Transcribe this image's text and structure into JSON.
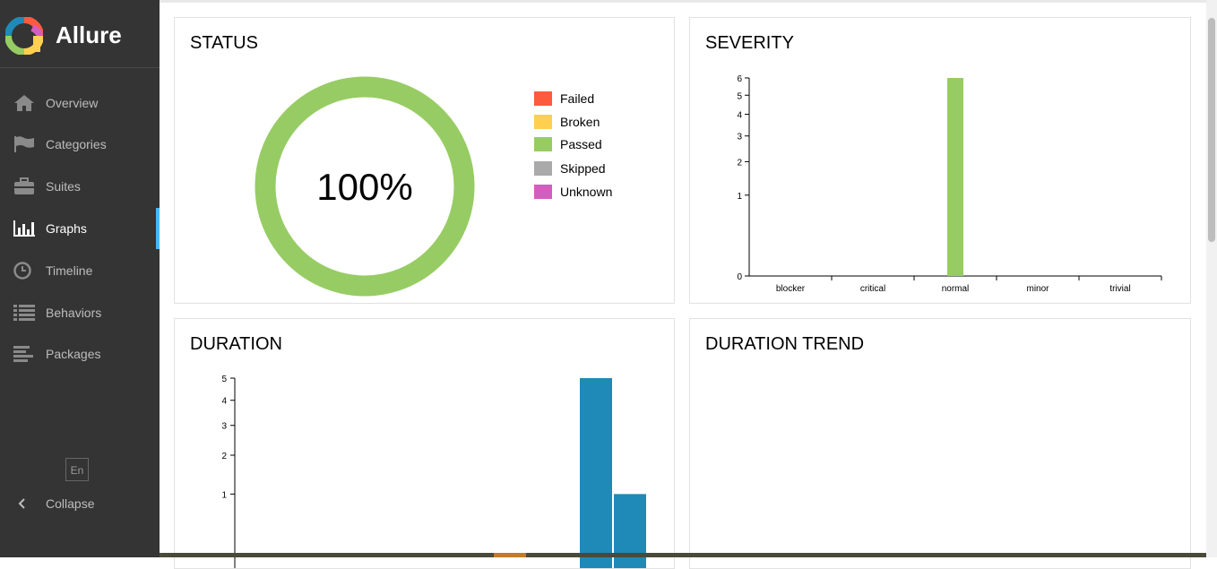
{
  "brand": {
    "name": "Allure"
  },
  "nav": [
    {
      "label": "Overview",
      "icon": "home-icon"
    },
    {
      "label": "Categories",
      "icon": "flag-icon"
    },
    {
      "label": "Suites",
      "icon": "briefcase-icon"
    },
    {
      "label": "Graphs",
      "icon": "bar-chart-icon",
      "active": true
    },
    {
      "label": "Timeline",
      "icon": "clock-icon"
    },
    {
      "label": "Behaviors",
      "icon": "list-icon"
    },
    {
      "label": "Packages",
      "icon": "align-left-icon"
    }
  ],
  "footer": {
    "lang": "En",
    "collapse": "Collapse"
  },
  "cards": {
    "status": {
      "title": "STATUS",
      "percent": "100%"
    },
    "severity": {
      "title": "SEVERITY"
    },
    "duration": {
      "title": "DURATION"
    },
    "trend": {
      "title": "DURATION TREND"
    }
  },
  "colors": {
    "failed": "#fd5a3e",
    "broken": "#ffd050",
    "passed": "#97cc64",
    "skipped": "#aaaaaa",
    "unknown": "#d35ebe",
    "duration": "#1f8ab8"
  },
  "chart_data": [
    {
      "type": "pie",
      "title": "STATUS",
      "categories": [
        "Failed",
        "Broken",
        "Passed",
        "Skipped",
        "Unknown"
      ],
      "values": [
        0,
        0,
        6,
        0,
        0
      ],
      "center_label": "100%"
    },
    {
      "type": "bar",
      "title": "SEVERITY",
      "categories": [
        "blocker",
        "critical",
        "normal",
        "minor",
        "trivial"
      ],
      "values": [
        0,
        0,
        6,
        0,
        0
      ],
      "yticks": [
        0,
        1,
        2,
        3,
        4,
        5,
        6
      ],
      "yscale": "sqrt"
    },
    {
      "type": "bar",
      "title": "DURATION",
      "yticks": [
        1,
        2,
        3,
        4,
        5
      ],
      "values": [
        5,
        1
      ],
      "yscale": "sqrt"
    }
  ]
}
